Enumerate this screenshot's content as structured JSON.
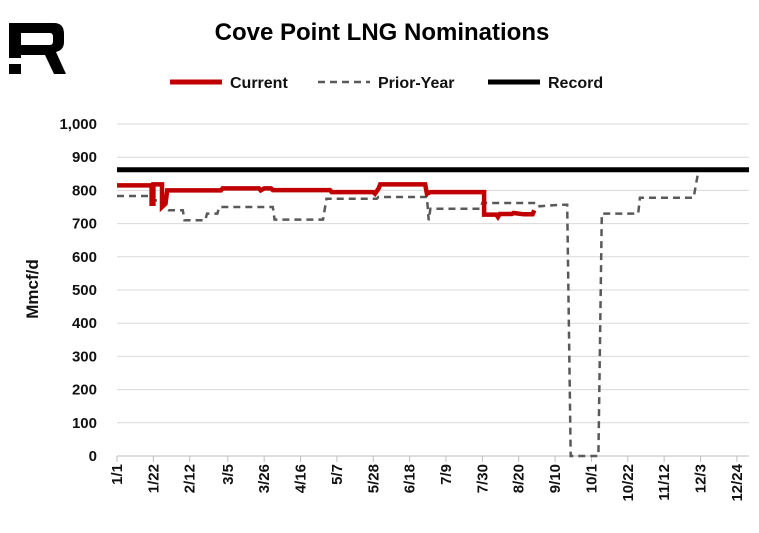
{
  "chart_data": {
    "type": "line",
    "title": "Cove Point LNG Nominations",
    "ylabel": "Mmcf/d",
    "xlabel": "",
    "ylim": [
      0,
      1000
    ],
    "yticks": [
      "0",
      "100",
      "200",
      "300",
      "400",
      "500",
      "600",
      "700",
      "800",
      "900",
      "1,000"
    ],
    "xticks": [
      "1/1",
      "1/22",
      "2/12",
      "3/5",
      "3/26",
      "4/16",
      "5/7",
      "5/28",
      "6/18",
      "7/9",
      "7/30",
      "8/20",
      "9/10",
      "10/1",
      "10/22",
      "11/12",
      "12/3",
      "12/24"
    ],
    "grid": "horizontal",
    "legend_position": "top",
    "series": [
      {
        "name": "Current",
        "color": "#c00000",
        "style": "solid",
        "points": [
          [
            "1/1",
            815
          ],
          [
            "1/21",
            815
          ],
          [
            "1/21",
            760
          ],
          [
            "1/22",
            760
          ],
          [
            "1/22",
            818
          ],
          [
            "1/27",
            818
          ],
          [
            "1/27",
            750
          ],
          [
            "1/29",
            760
          ],
          [
            "1/30",
            800
          ],
          [
            "3/1",
            800
          ],
          [
            "3/2",
            806
          ],
          [
            "3/23",
            806
          ],
          [
            "3/24",
            800
          ],
          [
            "3/26",
            806
          ],
          [
            "3/30",
            806
          ],
          [
            "3/31",
            801
          ],
          [
            "5/3",
            801
          ],
          [
            "5/4",
            795
          ],
          [
            "5/28",
            795
          ],
          [
            "5/29",
            790
          ],
          [
            "5/31",
            805
          ],
          [
            "6/1",
            818
          ],
          [
            "6/27",
            818
          ],
          [
            "6/28",
            790
          ],
          [
            "6/30",
            795
          ],
          [
            "7/31",
            795
          ],
          [
            "7/31",
            727
          ],
          [
            "8/7",
            727
          ],
          [
            "8/8",
            720
          ],
          [
            "8/9",
            729
          ],
          [
            "8/16",
            729
          ],
          [
            "8/17",
            732
          ],
          [
            "8/23",
            728
          ],
          [
            "8/28",
            728
          ],
          [
            "8/29",
            740
          ]
        ]
      },
      {
        "name": "Prior-Year",
        "color": "#595959",
        "style": "dashed",
        "points": [
          [
            "1/1",
            783
          ],
          [
            "1/21",
            783
          ],
          [
            "1/22",
            770
          ],
          [
            "1/27",
            770
          ],
          [
            "1/28",
            750
          ],
          [
            "1/31",
            740
          ],
          [
            "2/8",
            740
          ],
          [
            "2/9",
            710
          ],
          [
            "2/21",
            710
          ],
          [
            "2/22",
            730
          ],
          [
            "2/28",
            730
          ],
          [
            "2/29",
            750
          ],
          [
            "3/31",
            750
          ],
          [
            "4/1",
            712
          ],
          [
            "4/29",
            712
          ],
          [
            "5/1",
            775
          ],
          [
            "5/30",
            775
          ],
          [
            "5/31",
            780
          ],
          [
            "6/28",
            780
          ],
          [
            "6/29",
            710
          ],
          [
            "6/30",
            745
          ],
          [
            "7/29",
            745
          ],
          [
            "7/30",
            762
          ],
          [
            "8/31",
            762
          ],
          [
            "9/1",
            752
          ],
          [
            "9/13",
            757
          ],
          [
            "9/17",
            757
          ],
          [
            "9/19",
            0
          ],
          [
            "10/5",
            0
          ],
          [
            "10/7",
            730
          ],
          [
            "10/28",
            730
          ],
          [
            "10/29",
            778
          ],
          [
            "11/29",
            778
          ],
          [
            "12/2",
            865
          ]
        ]
      },
      {
        "name": "Record",
        "color": "#000000",
        "style": "solid",
        "points": [
          [
            "1/1",
            862
          ],
          [
            "12/31",
            862
          ]
        ]
      }
    ]
  }
}
